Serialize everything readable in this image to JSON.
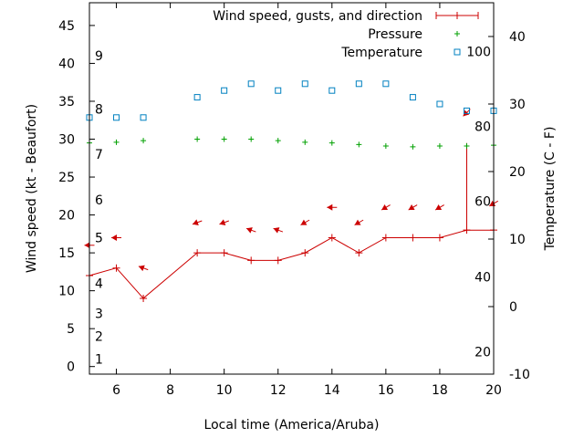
{
  "chart_data": {
    "type": "line",
    "xlabel": "Local time (America/Aruba)",
    "ylabel": "Wind speed (kt - Beaufort)",
    "y2label": "Temperature (C - F)",
    "xlim": [
      5,
      20
    ],
    "ylim": [
      -1,
      48
    ],
    "y2lim": [
      -10,
      45
    ],
    "x_ticks": [
      6,
      8,
      10,
      12,
      14,
      16,
      18,
      20
    ],
    "y_ticks": [
      0,
      5,
      10,
      15,
      20,
      25,
      30,
      35,
      40,
      45
    ],
    "y2_ticks": [
      -10,
      0,
      10,
      20,
      30,
      40
    ],
    "beaufort_labels": [
      {
        "label": "1",
        "y": 1
      },
      {
        "label": "2",
        "y": 4
      },
      {
        "label": "3",
        "y": 7
      },
      {
        "label": "4",
        "y": 11
      },
      {
        "label": "5",
        "y": 17
      },
      {
        "label": "6",
        "y": 22
      },
      {
        "label": "7",
        "y": 28
      },
      {
        "label": "8",
        "y": 34
      },
      {
        "label": "9",
        "y": 41
      }
    ],
    "fahrenheit_labels": [
      {
        "label": "20",
        "y2": -6.7
      },
      {
        "label": "40",
        "y2": 4.4
      },
      {
        "label": "60",
        "y2": 15.6
      },
      {
        "label": "80",
        "y2": 26.7
      },
      {
        "label": "100",
        "y2": 37.8
      }
    ],
    "legend_position": "top-right",
    "series": [
      {
        "name": "Wind speed, gusts, and direction",
        "kind": "wind",
        "color": "#cc0000",
        "x": [
          5,
          6,
          7,
          9,
          10,
          11,
          12,
          13,
          14,
          15,
          16,
          17,
          18,
          19,
          20
        ],
        "speed": [
          12,
          13,
          9,
          15,
          15,
          14,
          14,
          15,
          17,
          15,
          17,
          17,
          17,
          18,
          18
        ],
        "gust_at": 19,
        "gust": 29.5,
        "direction_deg": [
          90,
          90,
          110,
          70,
          70,
          110,
          110,
          60,
          90,
          60,
          60,
          60,
          60,
          45,
          60
        ],
        "arrow_y": [
          16,
          17,
          13,
          19,
          19,
          18,
          18,
          19,
          21,
          19,
          21,
          21,
          21,
          33.5,
          21.5
        ]
      },
      {
        "name": "Pressure",
        "kind": "pressure",
        "color": "#00a000",
        "x": [
          5,
          6,
          7,
          9,
          10,
          11,
          12,
          13,
          14,
          15,
          16,
          17,
          18,
          19,
          20
        ],
        "y": [
          29.5,
          29.6,
          29.8,
          30.0,
          30.0,
          30.0,
          29.8,
          29.6,
          29.5,
          29.3,
          29.1,
          29.0,
          29.1,
          29.1,
          29.2
        ]
      },
      {
        "name": "Temperature",
        "kind": "temperature",
        "color": "#0080c0",
        "x": [
          5,
          6,
          7,
          9,
          10,
          11,
          12,
          13,
          14,
          15,
          16,
          17,
          18,
          19,
          20
        ],
        "y2": [
          28,
          28,
          28,
          31,
          32,
          33,
          32,
          33,
          32,
          33,
          33,
          31,
          30,
          29,
          29
        ]
      }
    ]
  }
}
